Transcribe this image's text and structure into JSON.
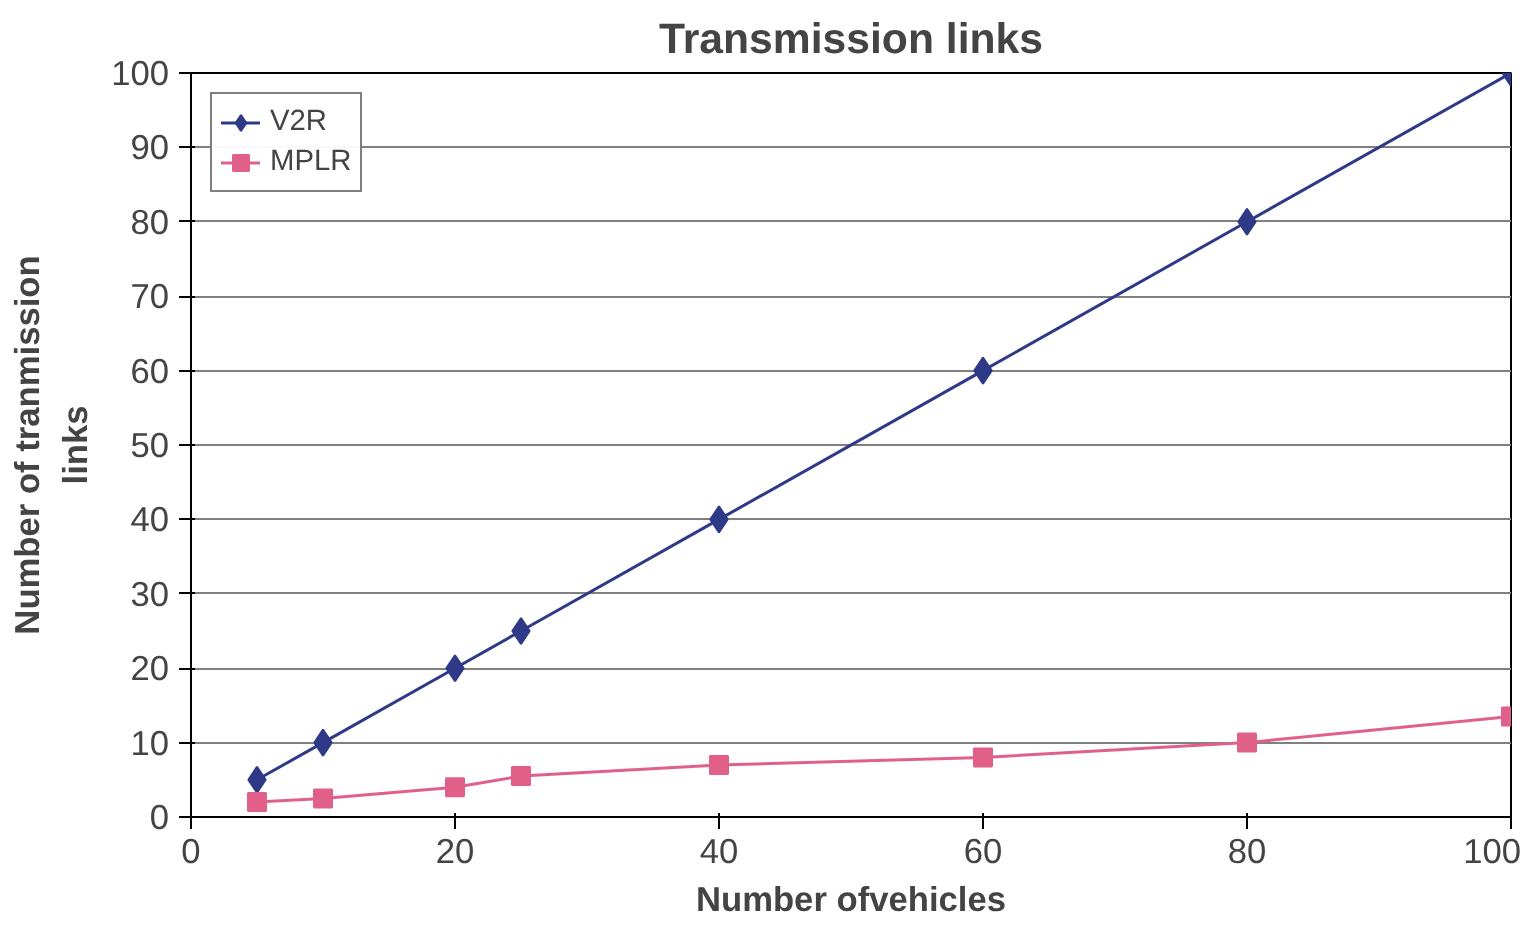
{
  "chart_data": {
    "type": "line",
    "title": "Transmission links",
    "xlabel": "Number ofvehicles",
    "ylabel": "Number of tranmission\nlinks",
    "x": [
      5,
      10,
      20,
      25,
      40,
      60,
      80,
      100
    ],
    "series": [
      {
        "name": "V2R",
        "color": "#2e3a87",
        "marker": "diamond",
        "values": [
          5,
          10,
          20,
          25,
          40,
          60,
          80,
          100
        ]
      },
      {
        "name": "MPLR",
        "color": "#e0608a",
        "marker": "square",
        "values": [
          2,
          2.5,
          4,
          5.5,
          7,
          8,
          10,
          13.5
        ]
      }
    ],
    "xlim": [
      0,
      100
    ],
    "xticks": [
      0,
      20,
      40,
      60,
      80,
      100
    ],
    "ylim": [
      0,
      100
    ],
    "yticks": [
      0,
      10,
      20,
      30,
      40,
      50,
      60,
      70,
      80,
      90,
      100
    ],
    "grid": "y",
    "legend": "top left",
    "line_style": "solid"
  }
}
